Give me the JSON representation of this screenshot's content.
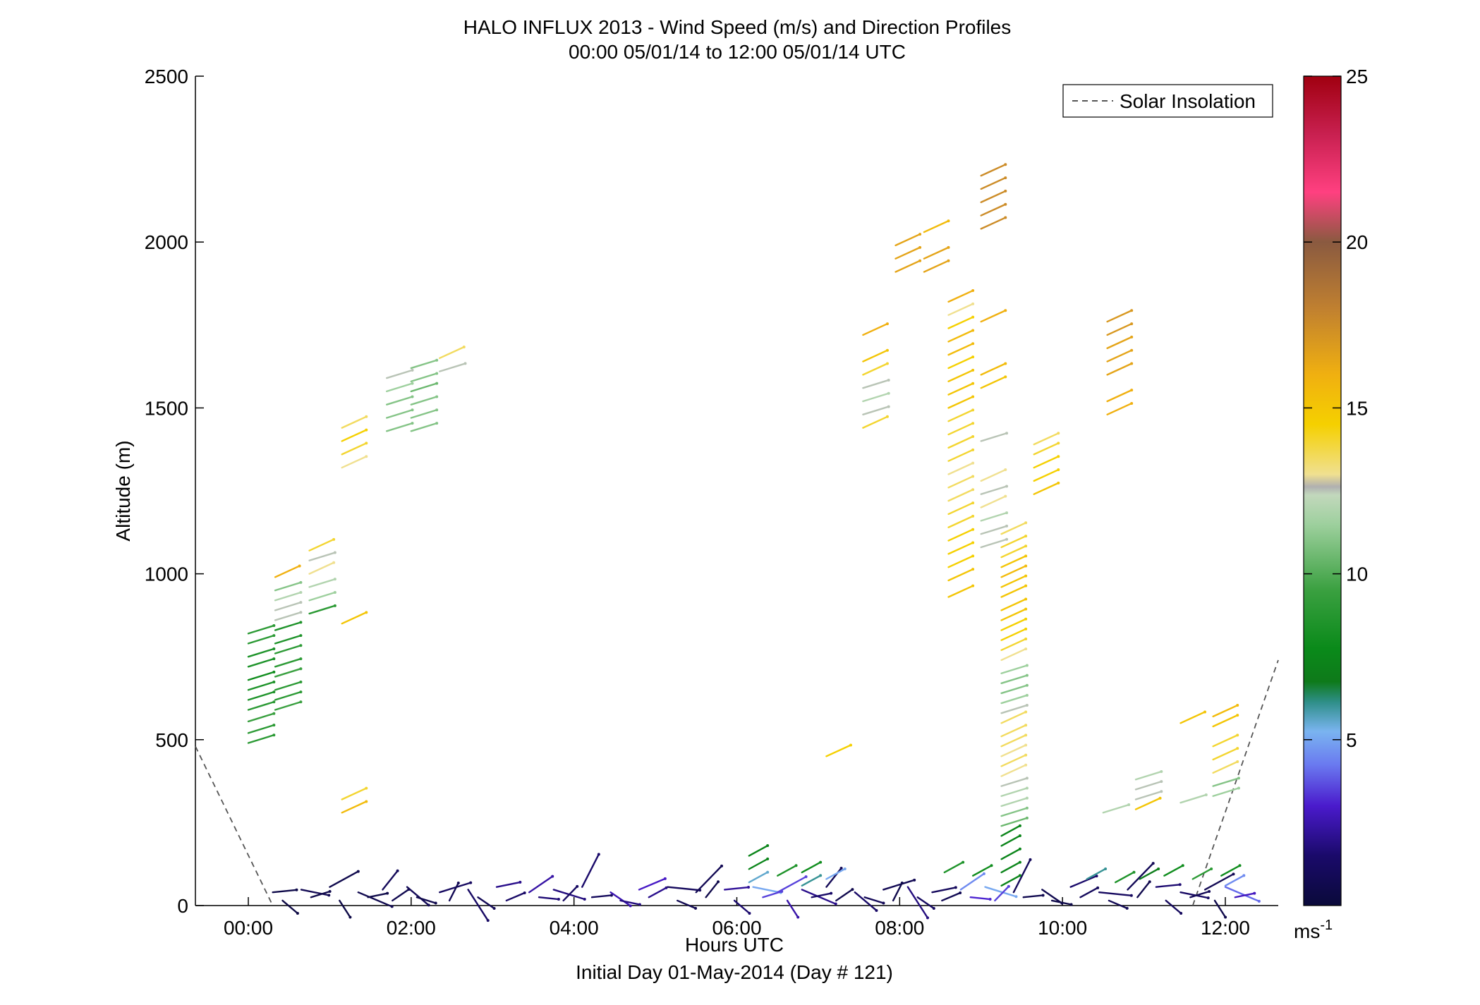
{
  "chart_data": {
    "type": "quiver",
    "title": "HALO INFLUX 2013 - Wind Speed (m/s) and Direction Profiles",
    "subtitle": "00:00 05/01/14 to 12:00 05/01/14  UTC",
    "xlabel": "Hours UTC",
    "xlabel2": "Initial Day 01-May-2014 (Day # 121)",
    "ylabel": "Altitude (m)",
    "xlim": [
      -0.65,
      12.65
    ],
    "ylim": [
      0,
      2500
    ],
    "x_ticks": [
      {
        "value": 0,
        "label": "00:00"
      },
      {
        "value": 2,
        "label": "02:00"
      },
      {
        "value": 4,
        "label": "04:00"
      },
      {
        "value": 6,
        "label": "06:00"
      },
      {
        "value": 8,
        "label": "08:00"
      },
      {
        "value": 10,
        "label": "10:00"
      },
      {
        "value": 12,
        "label": "12:00"
      }
    ],
    "y_ticks": [
      0,
      500,
      1000,
      1500,
      2000,
      2500
    ],
    "legend": {
      "entries": [
        "Solar Insolation"
      ],
      "placement": "top-right"
    },
    "colorbar": {
      "label": "ms-1",
      "range": [
        0,
        25
      ],
      "ticks": [
        5,
        10,
        15,
        20,
        25
      ]
    },
    "solar_insolation": {
      "x": [
        -0.65,
        0.3,
        11.6,
        12.65
      ],
      "y": [
        480,
        0,
        0,
        740
      ]
    },
    "profiles": [
      {
        "hour": 0.0,
        "speed_base": 9.0,
        "levels": [
          [
            490,
            9
          ],
          [
            520,
            9
          ],
          [
            555,
            9.5
          ],
          [
            590,
            9
          ],
          [
            620,
            8.5
          ],
          [
            650,
            8.5
          ],
          [
            680,
            8
          ],
          [
            720,
            8.5
          ],
          [
            750,
            8.5
          ],
          [
            790,
            9
          ],
          [
            820,
            9
          ]
        ]
      },
      {
        "hour": 0.33,
        "speed_base": 9.5,
        "levels": [
          [
            590,
            9.5
          ],
          [
            620,
            9
          ],
          [
            650,
            9
          ],
          [
            690,
            9.5
          ],
          [
            720,
            9
          ],
          [
            760,
            9
          ],
          [
            790,
            8.5
          ],
          [
            830,
            8.5
          ],
          [
            860,
            12.5
          ],
          [
            890,
            12.5
          ],
          [
            920,
            12
          ],
          [
            950,
            11
          ],
          [
            990,
            16
          ]
        ]
      },
      {
        "hour": 0.75,
        "speed_base": 12,
        "levels": [
          [
            880,
            9
          ],
          [
            920,
            11.5
          ],
          [
            960,
            12
          ],
          [
            1000,
            13
          ],
          [
            1040,
            12.5
          ],
          [
            1070,
            14
          ]
        ]
      },
      {
        "hour": 1.15,
        "speed_base": 15,
        "levels": [
          [
            280,
            15.5
          ],
          [
            320,
            14
          ],
          [
            850,
            15
          ],
          [
            1320,
            13
          ],
          [
            1360,
            14
          ],
          [
            1400,
            14.5
          ],
          [
            1440,
            13.5
          ]
        ]
      },
      {
        "hour": 1.7,
        "speed_base": 11,
        "levels": [
          [
            1430,
            11
          ],
          [
            1470,
            11
          ],
          [
            1510,
            11
          ],
          [
            1550,
            11.5
          ],
          [
            1590,
            12.5
          ]
        ]
      },
      {
        "hour": 2.0,
        "speed_base": 11,
        "levels": [
          [
            1430,
            11
          ],
          [
            1470,
            11
          ],
          [
            1510,
            11
          ],
          [
            1550,
            10.5
          ],
          [
            1580,
            11
          ],
          [
            1620,
            11
          ]
        ]
      },
      {
        "hour": 2.35,
        "speed_base": 13,
        "levels": [
          [
            1610,
            12.5
          ],
          [
            1650,
            13.5
          ]
        ]
      },
      {
        "hour": 7.1,
        "speed_base": 15,
        "levels": [
          [
            450,
            14.5
          ]
        ]
      },
      {
        "hour": 7.55,
        "speed_base": 15,
        "levels": [
          [
            1440,
            14
          ],
          [
            1480,
            12.5
          ],
          [
            1520,
            12
          ],
          [
            1560,
            12.5
          ],
          [
            1600,
            14
          ],
          [
            1640,
            15
          ],
          [
            1720,
            16
          ]
        ]
      },
      {
        "hour": 7.95,
        "speed_base": 16.5,
        "levels": [
          [
            1910,
            16.5
          ],
          [
            1950,
            16.5
          ],
          [
            1990,
            16.5
          ]
        ]
      },
      {
        "hour": 8.3,
        "speed_base": 16.5,
        "levels": [
          [
            1910,
            16.5
          ],
          [
            1950,
            16.5
          ],
          [
            2030,
            15.5
          ]
        ]
      },
      {
        "hour": 8.6,
        "speed_base": 14.5,
        "levels": [
          [
            930,
            15
          ],
          [
            980,
            15
          ],
          [
            1020,
            14.5
          ],
          [
            1060,
            14.5
          ],
          [
            1100,
            14.5
          ],
          [
            1140,
            14
          ],
          [
            1180,
            14
          ],
          [
            1220,
            13.5
          ],
          [
            1260,
            13.5
          ],
          [
            1300,
            13
          ],
          [
            1340,
            14
          ],
          [
            1380,
            14
          ],
          [
            1420,
            14
          ],
          [
            1460,
            14
          ],
          [
            1500,
            15
          ],
          [
            1540,
            15
          ],
          [
            1580,
            15
          ],
          [
            1620,
            14.5
          ],
          [
            1660,
            15.5
          ],
          [
            1700,
            15.5
          ],
          [
            1740,
            14.5
          ],
          [
            1780,
            13
          ],
          [
            1820,
            16
          ]
        ]
      },
      {
        "hour": 9.0,
        "speed_base": 17.5,
        "levels": [
          [
            1080,
            12.5
          ],
          [
            1120,
            12.5
          ],
          [
            1160,
            12
          ],
          [
            1200,
            13
          ],
          [
            1240,
            12.5
          ],
          [
            1280,
            13
          ],
          [
            1400,
            12.5
          ],
          [
            1560,
            15
          ],
          [
            1600,
            15.5
          ],
          [
            1760,
            16
          ],
          [
            2040,
            17.5
          ],
          [
            2080,
            17.5
          ],
          [
            2120,
            17.5
          ],
          [
            2160,
            17.5
          ],
          [
            2200,
            17.5
          ]
        ]
      },
      {
        "hour": 9.25,
        "speed_base": 14,
        "levels": [
          [
            240,
            10.5
          ],
          [
            270,
            11
          ],
          [
            300,
            12
          ],
          [
            330,
            12
          ],
          [
            360,
            12.5
          ],
          [
            390,
            13
          ],
          [
            420,
            13.5
          ],
          [
            450,
            13
          ],
          [
            480,
            13.5
          ],
          [
            510,
            13.5
          ],
          [
            550,
            13.5
          ],
          [
            580,
            12.5
          ],
          [
            610,
            11.5
          ],
          [
            640,
            11
          ],
          [
            670,
            11
          ],
          [
            700,
            11.5
          ],
          [
            740,
            13
          ],
          [
            770,
            14
          ],
          [
            800,
            14.5
          ],
          [
            830,
            14.5
          ],
          [
            860,
            15
          ],
          [
            890,
            15
          ],
          [
            930,
            15
          ],
          [
            960,
            15
          ],
          [
            990,
            15.5
          ],
          [
            1020,
            15
          ],
          [
            1050,
            14
          ],
          [
            1080,
            14
          ],
          [
            1120,
            13.5
          ]
        ]
      },
      {
        "hour": 9.65,
        "speed_base": 14.5,
        "levels": [
          [
            1240,
            15
          ],
          [
            1280,
            14.5
          ],
          [
            1320,
            14.5
          ],
          [
            1360,
            14
          ],
          [
            1390,
            13.5
          ]
        ]
      },
      {
        "hour": 10.55,
        "speed_base": 16,
        "levels": [
          [
            1480,
            16
          ],
          [
            1520,
            16
          ],
          [
            1600,
            16.5
          ],
          [
            1640,
            16.5
          ],
          [
            1680,
            16.5
          ],
          [
            1720,
            17
          ],
          [
            1760,
            17
          ]
        ]
      },
      {
        "hour": 10.5,
        "speed_base": 12,
        "levels": [
          [
            280,
            12
          ]
        ]
      },
      {
        "hour": 10.9,
        "speed_base": 13,
        "levels": [
          [
            290,
            15
          ],
          [
            320,
            12.5
          ],
          [
            350,
            12.5
          ],
          [
            380,
            12
          ]
        ]
      },
      {
        "hour": 11.45,
        "speed_base": 14,
        "levels": [
          [
            310,
            12
          ],
          [
            550,
            15
          ]
        ]
      },
      {
        "hour": 11.85,
        "speed_base": 14.5,
        "levels": [
          [
            330,
            11.5
          ],
          [
            360,
            11
          ],
          [
            400,
            13.5
          ],
          [
            440,
            14
          ],
          [
            480,
            14
          ],
          [
            540,
            15
          ],
          [
            570,
            15.5
          ]
        ]
      }
    ],
    "surface_winds": [
      {
        "hour": 0.3,
        "speed": 0.5
      },
      {
        "hour": 0.65,
        "speed": 0.8
      },
      {
        "hour": 1.0,
        "speed": 0.6
      },
      {
        "hour": 1.35,
        "speed": 0.7
      },
      {
        "hour": 1.65,
        "speed": 1.0
      },
      {
        "hour": 1.95,
        "speed": 0.9
      },
      {
        "hour": 2.35,
        "speed": 1.2
      },
      {
        "hour": 2.7,
        "speed": 1.3
      },
      {
        "hour": 3.05,
        "speed": 2.0
      },
      {
        "hour": 3.45,
        "speed": 2.4
      },
      {
        "hour": 3.75,
        "speed": 1.8
      },
      {
        "hour": 4.1,
        "speed": 1.5
      },
      {
        "hour": 4.45,
        "speed": 2.6
      },
      {
        "hour": 4.8,
        "speed": 2.9
      },
      {
        "hour": 5.15,
        "speed": 1.1
      },
      {
        "hour": 5.5,
        "speed": 0.8
      },
      {
        "hour": 5.85,
        "speed": 2.2
      },
      {
        "hour": 6.2,
        "speed": 5.0
      },
      {
        "hour": 6.5,
        "speed": 3.5
      },
      {
        "hour": 6.8,
        "speed": 2.0
      },
      {
        "hour": 7.1,
        "speed": 0.9
      },
      {
        "hour": 7.45,
        "speed": 1.4
      },
      {
        "hour": 7.8,
        "speed": 0.8
      },
      {
        "hour": 8.1,
        "speed": 1.8
      },
      {
        "hour": 8.4,
        "speed": 1.1
      },
      {
        "hour": 8.75,
        "speed": 4.5
      },
      {
        "hour": 9.05,
        "speed": 5.0
      },
      {
        "hour": 9.4,
        "speed": 1.0
      },
      {
        "hour": 9.75,
        "speed": 0.7
      },
      {
        "hour": 10.1,
        "speed": 1.5
      },
      {
        "hour": 10.45,
        "speed": 1.2
      },
      {
        "hour": 10.8,
        "speed": 0.9
      },
      {
        "hour": 11.15,
        "speed": 1.6
      },
      {
        "hour": 11.45,
        "speed": 1.3
      },
      {
        "hour": 11.75,
        "speed": 0.8
      },
      {
        "hour": 12.0,
        "speed": 4.0
      }
    ],
    "surface_gusts": [
      {
        "hour": 6.15,
        "alt": 110,
        "speed": 7.5
      },
      {
        "hour": 6.15,
        "alt": 150,
        "speed": 7.5
      },
      {
        "hour": 6.15,
        "alt": 70,
        "speed": 5.5
      },
      {
        "hour": 6.5,
        "alt": 90,
        "speed": 8.5
      },
      {
        "hour": 6.8,
        "alt": 100,
        "speed": 8.0
      },
      {
        "hour": 6.8,
        "alt": 60,
        "speed": 6.0
      },
      {
        "hour": 7.1,
        "alt": 80,
        "speed": 5.0
      },
      {
        "hour": 8.55,
        "alt": 100,
        "speed": 8.5
      },
      {
        "hour": 8.9,
        "alt": 90,
        "speed": 8.0
      },
      {
        "hour": 9.25,
        "alt": 60,
        "speed": 7.5
      },
      {
        "hour": 9.25,
        "alt": 100,
        "speed": 7.5
      },
      {
        "hour": 9.25,
        "alt": 140,
        "speed": 7.5
      },
      {
        "hour": 9.25,
        "alt": 180,
        "speed": 7.5
      },
      {
        "hour": 9.25,
        "alt": 210,
        "speed": 7.5
      },
      {
        "hour": 10.3,
        "alt": 80,
        "speed": 6.0
      },
      {
        "hour": 10.65,
        "alt": 70,
        "speed": 8.5
      },
      {
        "hour": 10.95,
        "alt": 80,
        "speed": 7.0
      },
      {
        "hour": 11.25,
        "alt": 90,
        "speed": 8.0
      },
      {
        "hour": 11.6,
        "alt": 80,
        "speed": 9.0
      },
      {
        "hour": 11.95,
        "alt": 90,
        "speed": 8.0
      },
      {
        "hour": 12.0,
        "alt": 60,
        "speed": 4.5
      }
    ]
  }
}
